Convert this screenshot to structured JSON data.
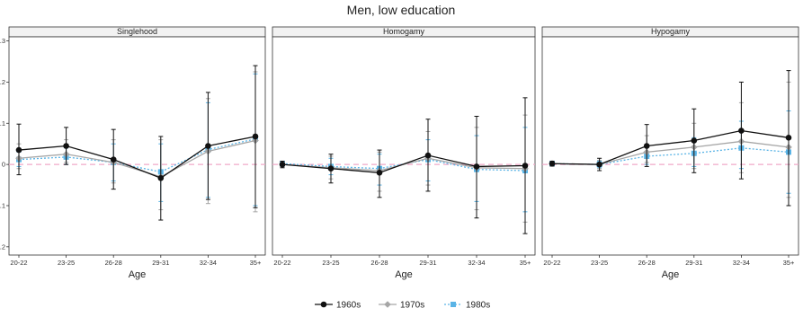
{
  "title": "Men, low education",
  "chart_data": [
    {
      "type": "line",
      "title": "Singlehood",
      "xlabel": "Age",
      "ylabel": "",
      "categories": [
        "20-22",
        "23-25",
        "26-28",
        "29-31",
        "32-34",
        "35+"
      ],
      "yticks": [
        ".3",
        ".2",
        ".1",
        "0",
        "-.1",
        "-.2"
      ],
      "ylim": [
        -0.22,
        0.31
      ],
      "series": [
        {
          "name": "1960s",
          "values": [
            0.035,
            0.045,
            0.012,
            -0.033,
            0.045,
            0.068
          ],
          "ci_low": [
            -0.025,
            0.0,
            -0.06,
            -0.135,
            -0.085,
            -0.105
          ],
          "ci_high": [
            0.098,
            0.09,
            0.085,
            0.068,
            0.175,
            0.24
          ]
        },
        {
          "name": "1970s",
          "values": [
            0.015,
            0.025,
            0.005,
            -0.03,
            0.032,
            0.058
          ],
          "ci_low": [
            -0.01,
            0.005,
            -0.045,
            -0.11,
            -0.095,
            -0.115
          ],
          "ci_high": [
            0.05,
            0.06,
            0.06,
            0.06,
            0.16,
            0.225
          ]
        },
        {
          "name": "1980s",
          "values": [
            0.012,
            0.018,
            0.005,
            -0.018,
            0.036,
            0.062
          ],
          "ci_low": [
            -0.005,
            0.0,
            -0.04,
            -0.09,
            -0.08,
            -0.1
          ],
          "ci_high": [
            0.03,
            0.04,
            0.05,
            0.05,
            0.15,
            0.22
          ]
        }
      ]
    },
    {
      "type": "line",
      "title": "Homogamy",
      "xlabel": "Age",
      "ylabel": "",
      "categories": [
        "20-22",
        "23-25",
        "26-28",
        "29-31",
        "32-34",
        "35+"
      ],
      "yticks": [],
      "ylim": [
        -0.22,
        0.31
      ],
      "series": [
        {
          "name": "1960s",
          "values": [
            0.0,
            -0.01,
            -0.02,
            0.022,
            -0.005,
            -0.003
          ],
          "ci_low": [
            -0.008,
            -0.045,
            -0.08,
            -0.065,
            -0.13,
            -0.168
          ],
          "ci_high": [
            0.008,
            0.025,
            0.035,
            0.11,
            0.117,
            0.162
          ]
        },
        {
          "name": "1970s",
          "values": [
            0.0,
            -0.008,
            -0.015,
            0.015,
            -0.008,
            -0.01
          ],
          "ci_low": [
            -0.006,
            -0.035,
            -0.065,
            -0.05,
            -0.11,
            -0.14
          ],
          "ci_high": [
            0.006,
            0.02,
            0.03,
            0.08,
            0.09,
            0.12
          ]
        },
        {
          "name": "1980s",
          "values": [
            0.002,
            -0.005,
            -0.01,
            0.012,
            -0.012,
            -0.015
          ],
          "ci_low": [
            -0.004,
            -0.025,
            -0.05,
            -0.04,
            -0.09,
            -0.115
          ],
          "ci_high": [
            0.006,
            0.015,
            0.025,
            0.06,
            0.07,
            0.09
          ]
        }
      ]
    },
    {
      "type": "line",
      "title": "Hypogamy",
      "xlabel": "Age",
      "ylabel": "",
      "categories": [
        "20-22",
        "23-25",
        "26-28",
        "29-31",
        "32-34",
        "35+"
      ],
      "yticks": [],
      "ylim": [
        -0.22,
        0.31
      ],
      "series": [
        {
          "name": "1960s",
          "values": [
            0.002,
            0.0,
            0.045,
            0.058,
            0.082,
            0.065
          ],
          "ci_low": [
            -0.004,
            -0.015,
            -0.005,
            -0.02,
            -0.035,
            -0.1
          ],
          "ci_high": [
            0.008,
            0.015,
            0.097,
            0.135,
            0.2,
            0.228
          ]
        },
        {
          "name": "1970s",
          "values": [
            0.002,
            0.0,
            0.03,
            0.042,
            0.056,
            0.042
          ],
          "ci_low": [
            -0.003,
            -0.01,
            0.005,
            -0.01,
            -0.02,
            -0.08
          ],
          "ci_high": [
            0.007,
            0.01,
            0.07,
            0.1,
            0.15,
            0.2
          ]
        },
        {
          "name": "1980s",
          "values": [
            0.002,
            0.0,
            0.02,
            0.027,
            0.04,
            0.03
          ],
          "ci_low": [
            -0.003,
            -0.008,
            0.0,
            -0.005,
            -0.01,
            -0.07
          ],
          "ci_high": [
            0.006,
            0.008,
            0.045,
            0.065,
            0.105,
            0.13
          ]
        }
      ]
    }
  ],
  "legend": {
    "position": "bottom",
    "items": [
      {
        "label": "1960s",
        "color": "#111111",
        "marker": "circle",
        "dash": "solid"
      },
      {
        "label": "1970s",
        "color": "#a6a6a6",
        "marker": "diamond",
        "dash": "solid"
      },
      {
        "label": "1980s",
        "color": "#5ab4e6",
        "marker": "square",
        "dash": "dotted"
      }
    ]
  },
  "reference_line_color": "#f0a8c8"
}
